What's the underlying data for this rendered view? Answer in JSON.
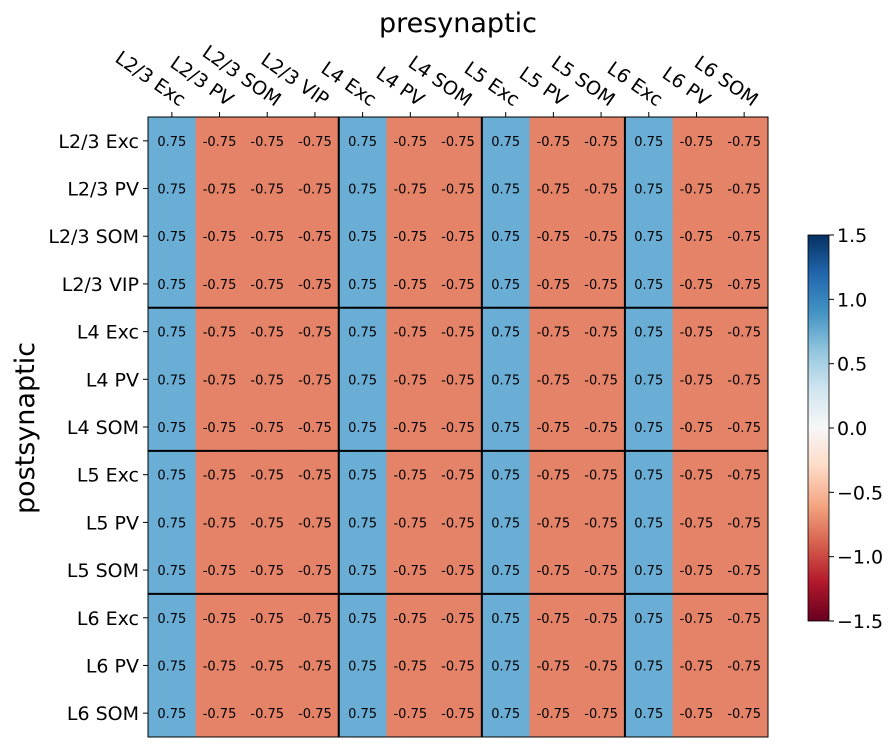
{
  "chart_data": {
    "type": "heatmap",
    "title": "",
    "xlabel": "presynaptic",
    "ylabel": "postsynaptic",
    "x_labels": [
      "L2/3 Exc",
      "L2/3 PV",
      "L2/3 SOM",
      "L2/3 VIP",
      "L4 Exc",
      "L4 PV",
      "L4 SOM",
      "L5 Exc",
      "L5 PV",
      "L5 SOM",
      "L6 Exc",
      "L6 PV",
      "L6 SOM"
    ],
    "y_labels": [
      "L2/3 Exc",
      "L2/3 PV",
      "L2/3 SOM",
      "L2/3 VIP",
      "L4 Exc",
      "L4 PV",
      "L4 SOM",
      "L5 Exc",
      "L5 PV",
      "L5 SOM",
      "L6 Exc",
      "L6 PV",
      "L6 SOM"
    ],
    "values": [
      [
        0.75,
        -0.75,
        -0.75,
        -0.75,
        0.75,
        -0.75,
        -0.75,
        0.75,
        -0.75,
        -0.75,
        0.75,
        -0.75,
        -0.75
      ],
      [
        0.75,
        -0.75,
        -0.75,
        -0.75,
        0.75,
        -0.75,
        -0.75,
        0.75,
        -0.75,
        -0.75,
        0.75,
        -0.75,
        -0.75
      ],
      [
        0.75,
        -0.75,
        -0.75,
        -0.75,
        0.75,
        -0.75,
        -0.75,
        0.75,
        -0.75,
        -0.75,
        0.75,
        -0.75,
        -0.75
      ],
      [
        0.75,
        -0.75,
        -0.75,
        -0.75,
        0.75,
        -0.75,
        -0.75,
        0.75,
        -0.75,
        -0.75,
        0.75,
        -0.75,
        -0.75
      ],
      [
        0.75,
        -0.75,
        -0.75,
        -0.75,
        0.75,
        -0.75,
        -0.75,
        0.75,
        -0.75,
        -0.75,
        0.75,
        -0.75,
        -0.75
      ],
      [
        0.75,
        -0.75,
        -0.75,
        -0.75,
        0.75,
        -0.75,
        -0.75,
        0.75,
        -0.75,
        -0.75,
        0.75,
        -0.75,
        -0.75
      ],
      [
        0.75,
        -0.75,
        -0.75,
        -0.75,
        0.75,
        -0.75,
        -0.75,
        0.75,
        -0.75,
        -0.75,
        0.75,
        -0.75,
        -0.75
      ],
      [
        0.75,
        -0.75,
        -0.75,
        -0.75,
        0.75,
        -0.75,
        -0.75,
        0.75,
        -0.75,
        -0.75,
        0.75,
        -0.75,
        -0.75
      ],
      [
        0.75,
        -0.75,
        -0.75,
        -0.75,
        0.75,
        -0.75,
        -0.75,
        0.75,
        -0.75,
        -0.75,
        0.75,
        -0.75,
        -0.75
      ],
      [
        0.75,
        -0.75,
        -0.75,
        -0.75,
        0.75,
        -0.75,
        -0.75,
        0.75,
        -0.75,
        -0.75,
        0.75,
        -0.75,
        -0.75
      ],
      [
        0.75,
        -0.75,
        -0.75,
        -0.75,
        0.75,
        -0.75,
        -0.75,
        0.75,
        -0.75,
        -0.75,
        0.75,
        -0.75,
        -0.75
      ],
      [
        0.75,
        -0.75,
        -0.75,
        -0.75,
        0.75,
        -0.75,
        -0.75,
        0.75,
        -0.75,
        -0.75,
        0.75,
        -0.75,
        -0.75
      ],
      [
        0.75,
        -0.75,
        -0.75,
        -0.75,
        0.75,
        -0.75,
        -0.75,
        0.75,
        -0.75,
        -0.75,
        0.75,
        -0.75,
        -0.75
      ]
    ],
    "layer_boundaries_after_index": [
      3,
      6,
      9
    ],
    "colorbar": {
      "colormap": "RdBu",
      "vmin": -1.5,
      "vmax": 1.5,
      "ticks": [
        -1.5,
        -1.0,
        -0.5,
        0.0,
        0.5,
        1.0,
        1.5
      ],
      "tick_labels": [
        "−1.5",
        "−1.0",
        "−0.5",
        "0.0",
        "0.5",
        "1.0",
        "1.5"
      ]
    },
    "positive_color": "#6aaed6",
    "negative_color": "#e58368",
    "x_ticks_position": "top",
    "grid": false,
    "legend": "colorbar-right"
  }
}
